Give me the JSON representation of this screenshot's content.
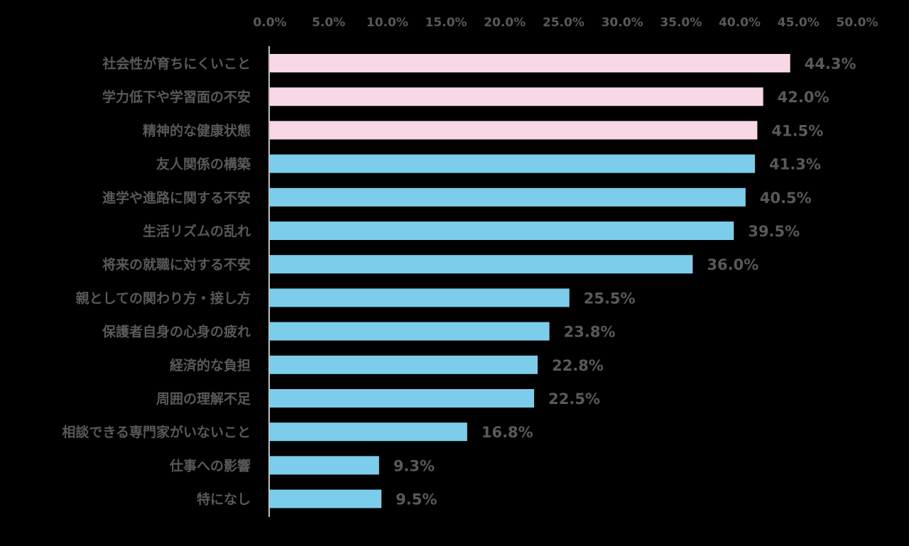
{
  "chart_data": {
    "type": "bar",
    "orientation": "horizontal",
    "categories": [
      "社会性が育ちにくいこと",
      "学力低下や学習面の不安",
      "精神的な健康状態",
      "友人関係の構築",
      "進学や進路に関する不安",
      "生活リズムの乱れ",
      "将来の就職に対する不安",
      "親としての関わり方・接し方",
      "保護者自身の心身の疲れ",
      "経済的な負担",
      "周囲の理解不足",
      "相談できる専門家がいないこと",
      "仕事への影響",
      "特になし"
    ],
    "values": [
      44.3,
      42.0,
      41.5,
      41.3,
      40.5,
      39.5,
      36.0,
      25.5,
      23.8,
      22.8,
      22.5,
      16.8,
      9.3,
      9.5
    ],
    "data_labels": [
      "44.3%",
      "42.0%",
      "41.5%",
      "41.3%",
      "40.5%",
      "39.5%",
      "36.0%",
      "25.5%",
      "23.8%",
      "22.8%",
      "22.5%",
      "16.8%",
      "9.3%",
      "9.5%"
    ],
    "highlighted": [
      true,
      true,
      true,
      false,
      false,
      false,
      false,
      false,
      false,
      false,
      false,
      false,
      false,
      false
    ],
    "colors": {
      "highlight": "#f8d7e6",
      "default": "#7ccdeb",
      "text": "#595959",
      "axis": "#ffffff",
      "background": "#000000"
    },
    "xlim": [
      0,
      50
    ],
    "x_ticks": [
      "0.0%",
      "5.0%",
      "10.0%",
      "15.0%",
      "20.0%",
      "25.0%",
      "30.0%",
      "35.0%",
      "40.0%",
      "45.0%",
      "50.0%"
    ],
    "x_axis_position": "top",
    "grid": false,
    "legend": "none",
    "title": "",
    "xlabel": "",
    "ylabel": ""
  }
}
